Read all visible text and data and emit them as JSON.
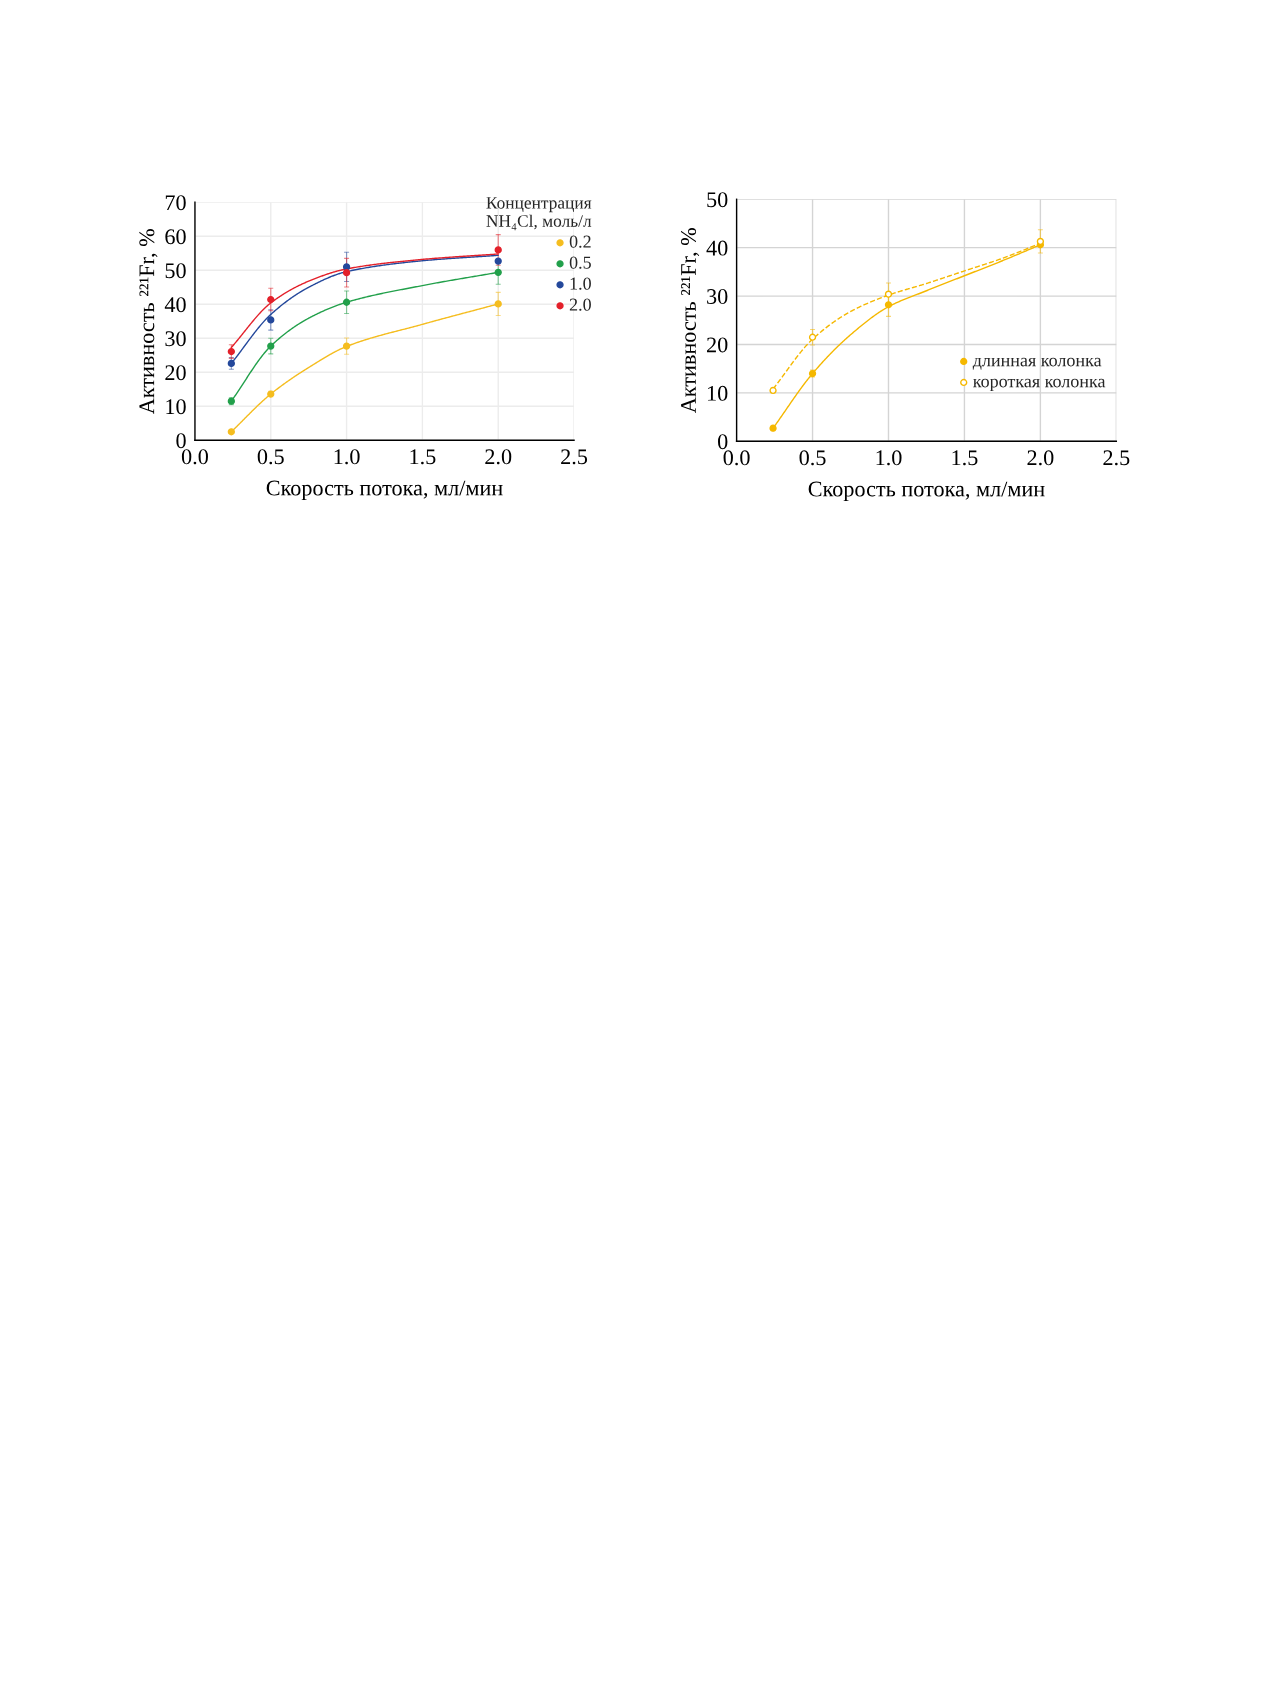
{
  "chart_data": [
    {
      "type": "scatter",
      "xlabel": "Скорость потока, мл/мин",
      "ylabel": "Активность ²²¹Fr, %",
      "legend_title": "Концентрация\nNH₄Cl, моль/л",
      "xlim": [
        0,
        2.5
      ],
      "xticks": [
        {
          "value": 0,
          "label": "0.0"
        },
        {
          "value": 0.5,
          "label": "0.5"
        },
        {
          "value": 1,
          "label": "1.0"
        },
        {
          "value": 1.5,
          "label": "1.5"
        },
        {
          "value": 2,
          "label": "2.0"
        },
        {
          "value": 2.5,
          "label": "2.5"
        }
      ],
      "ylim": [
        0,
        70
      ],
      "yticks": [
        0,
        10,
        20,
        30,
        40,
        50,
        60,
        70
      ],
      "grid": true,
      "legend": "top right",
      "marker": "circle",
      "series": [
        {
          "name": "0.2",
          "color": "#f5bd1f",
          "x": [
            0.24,
            0.5,
            1,
            2
          ],
          "values": [
            2.5,
            13.6,
            27.7,
            40.1
          ],
          "errors": [
            0.5,
            0.8,
            2.4,
            3.4
          ]
        },
        {
          "name": "0.5",
          "color": "#22a04b",
          "x": [
            0.24,
            0.5,
            1,
            2
          ],
          "values": [
            11.5,
            27.7,
            40.6,
            49.4
          ],
          "errors": [
            1.0,
            2.3,
            3.3,
            3.5
          ]
        },
        {
          "name": "1.0",
          "color": "#24489b",
          "x": [
            0.24,
            0.5,
            1,
            2
          ],
          "values": [
            22.6,
            35.4,
            51.0,
            52.7
          ],
          "errors": [
            1.7,
            3.0,
            4.3,
            null
          ]
        },
        {
          "name": "2.0",
          "color": "#e3202a",
          "x": [
            0.24,
            0.5,
            1,
            2
          ],
          "values": [
            26.1,
            41.4,
            49.3,
            56.0
          ],
          "errors": [
            2.0,
            3.3,
            4.2,
            4.5
          ]
        },
        {
          "type": "line",
          "marker": "none",
          "color": "#f5bd1f",
          "x": [
            0.24,
            0.5,
            0.75,
            1,
            1.5,
            2
          ],
          "values": [
            2.5,
            13.6,
            21.4,
            27.6,
            34.1,
            40.1
          ]
        },
        {
          "type": "line",
          "marker": "none",
          "color": "#22a04b",
          "x": [
            0.24,
            0.5,
            0.75,
            1,
            1.5,
            2
          ],
          "values": [
            11.5,
            27.7,
            35.9,
            40.6,
            45.5,
            49.4
          ]
        },
        {
          "type": "line",
          "marker": "none",
          "color": "#24489b",
          "x": [
            0.24,
            0.5,
            0.75,
            1,
            1.5,
            2
          ],
          "values": [
            22.6,
            37.0,
            45.0,
            49.6,
            52.8,
            54.4
          ]
        },
        {
          "type": "line",
          "marker": "none",
          "color": "#e3202a",
          "x": [
            0.24,
            0.5,
            0.75,
            1,
            1.5,
            2
          ],
          "values": [
            27.3,
            40.4,
            46.8,
            50.4,
            53.2,
            54.8
          ]
        }
      ]
    },
    {
      "type": "scatter",
      "xlabel": "Скорость потока, мл/мин",
      "ylabel": "Активность ²²¹Fr, %",
      "xlim": [
        0,
        2.5
      ],
      "xticks": [
        {
          "value": 0,
          "label": "0.0"
        },
        {
          "value": 0.5,
          "label": "0.5"
        },
        {
          "value": 1,
          "label": "1.0"
        },
        {
          "value": 1.5,
          "label": "1.5"
        },
        {
          "value": 2,
          "label": "2.0"
        },
        {
          "value": 2.5,
          "label": "2.5"
        }
      ],
      "ylim": [
        0,
        50
      ],
      "yticks": [
        0,
        10,
        20,
        30,
        40,
        50
      ],
      "grid": true,
      "legend": "right",
      "marker": "circle",
      "series": [
        {
          "name": "длинная колонка",
          "color": "#f5b800",
          "x": [
            0.24,
            0.5,
            1,
            2
          ],
          "values": [
            2.7,
            14.0,
            28.2,
            40.6
          ],
          "errors": [
            0.5,
            0.7,
            2.4,
            null
          ]
        },
        {
          "name": "короткая колонка",
          "color": "#f5b800",
          "x": [
            0.24,
            0.5,
            1,
            2
          ],
          "values": [
            10.5,
            21.5,
            30.4,
            41.3
          ],
          "errors": [
            0.5,
            1.6,
            2.3,
            2.4
          ]
        },
        {
          "type": "line",
          "marker": "none",
          "color": "#f5b800",
          "line_style": "solid",
          "x": [
            0.24,
            0.5,
            0.75,
            1,
            1.25,
            1.5,
            1.75,
            2
          ],
          "values": [
            2.7,
            14.0,
            22.0,
            27.8,
            31.1,
            34.2,
            37.3,
            40.6
          ]
        },
        {
          "type": "line",
          "marker": "none",
          "color": "#f5b800",
          "line_style": "dashed",
          "x": [
            0.24,
            0.5,
            0.75,
            1,
            1.25,
            1.5,
            1.75,
            2
          ],
          "values": [
            10.8,
            21.1,
            26.8,
            30.2,
            32.6,
            35.2,
            37.8,
            40.9
          ]
        }
      ]
    }
  ]
}
